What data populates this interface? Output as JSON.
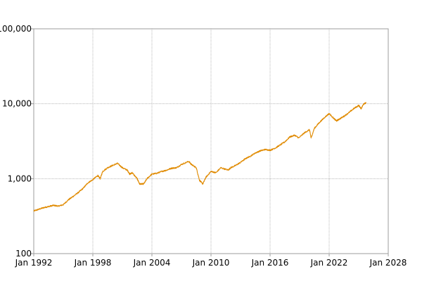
{
  "chart_data": {
    "type": "line",
    "title": "",
    "xlabel": "",
    "ylabel": "",
    "y_scale": "log",
    "ylim": [
      100,
      100000
    ],
    "xlim": [
      "1992-01",
      "2028-01"
    ],
    "grid": true,
    "legend": "none",
    "line_color": "#e08a00",
    "x_ticks": [
      "Jan 1992",
      "Jan 1998",
      "Jan 2004",
      "Jan 2010",
      "Jan 2016",
      "Jan 2022",
      "Jan 2028"
    ],
    "y_ticks": [
      "100",
      "1,000",
      "10,000",
      "100,000"
    ],
    "series": [
      {
        "points": [
          [
            "1992-01",
            370
          ],
          [
            "1992-07",
            390
          ],
          [
            "1993-01",
            410
          ],
          [
            "1993-07",
            425
          ],
          [
            "1994-01",
            440
          ],
          [
            "1994-07",
            430
          ],
          [
            "1995-01",
            450
          ],
          [
            "1995-07",
            520
          ],
          [
            "1996-01",
            580
          ],
          [
            "1996-07",
            650
          ],
          [
            "1997-01",
            740
          ],
          [
            "1997-07",
            880
          ],
          [
            "1998-01",
            970
          ],
          [
            "1998-07",
            1100
          ],
          [
            "1998-10",
            1000
          ],
          [
            "1999-01",
            1250
          ],
          [
            "1999-07",
            1400
          ],
          [
            "2000-01",
            1500
          ],
          [
            "2000-07",
            1600
          ],
          [
            "2001-01",
            1400
          ],
          [
            "2001-07",
            1300
          ],
          [
            "2001-10",
            1150
          ],
          [
            "2002-01",
            1200
          ],
          [
            "2002-07",
            1000
          ],
          [
            "2002-10",
            850
          ],
          [
            "2003-03",
            850
          ],
          [
            "2003-07",
            1000
          ],
          [
            "2004-01",
            1150
          ],
          [
            "2004-07",
            1180
          ],
          [
            "2005-01",
            1250
          ],
          [
            "2005-07",
            1300
          ],
          [
            "2006-01",
            1380
          ],
          [
            "2006-07",
            1400
          ],
          [
            "2007-01",
            1550
          ],
          [
            "2007-10",
            1700
          ],
          [
            "2008-01",
            1550
          ],
          [
            "2008-07",
            1400
          ],
          [
            "2008-11",
            950
          ],
          [
            "2009-03",
            850
          ],
          [
            "2009-07",
            1050
          ],
          [
            "2010-01",
            1250
          ],
          [
            "2010-07",
            1200
          ],
          [
            "2011-01",
            1400
          ],
          [
            "2011-10",
            1300
          ],
          [
            "2012-01",
            1400
          ],
          [
            "2012-07",
            1500
          ],
          [
            "2013-01",
            1650
          ],
          [
            "2013-07",
            1850
          ],
          [
            "2014-01",
            2000
          ],
          [
            "2014-07",
            2200
          ],
          [
            "2015-01",
            2350
          ],
          [
            "2015-07",
            2450
          ],
          [
            "2016-01",
            2400
          ],
          [
            "2016-07",
            2550
          ],
          [
            "2017-01",
            2800
          ],
          [
            "2017-07",
            3100
          ],
          [
            "2018-01",
            3600
          ],
          [
            "2018-07",
            3800
          ],
          [
            "2018-12",
            3500
          ],
          [
            "2019-07",
            4100
          ],
          [
            "2020-01",
            4500
          ],
          [
            "2020-03",
            3500
          ],
          [
            "2020-07",
            4700
          ],
          [
            "2021-01",
            5600
          ],
          [
            "2021-07",
            6500
          ],
          [
            "2022-01",
            7400
          ],
          [
            "2022-07",
            6300
          ],
          [
            "2022-10",
            5900
          ],
          [
            "2023-01",
            6200
          ],
          [
            "2023-07",
            6800
          ],
          [
            "2024-01",
            7600
          ],
          [
            "2024-07",
            8600
          ],
          [
            "2025-01",
            9500
          ],
          [
            "2025-04",
            8600
          ],
          [
            "2025-07",
            10000
          ],
          [
            "2025-10",
            10200
          ]
        ]
      }
    ]
  }
}
